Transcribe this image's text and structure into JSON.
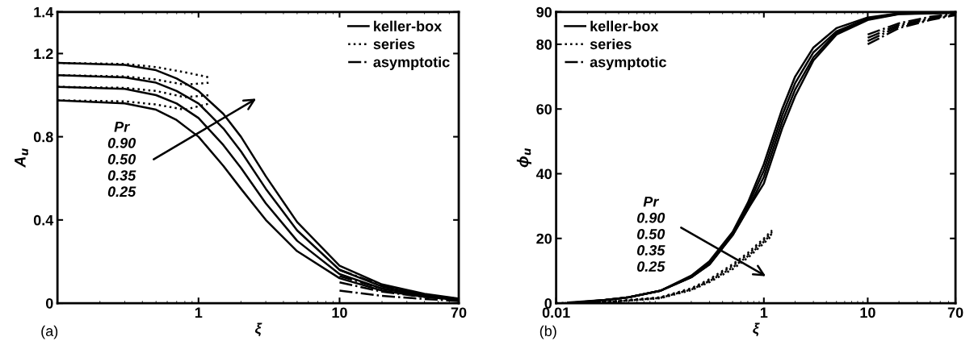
{
  "chart_data": [
    {
      "type": "line",
      "xlabel": "ξ",
      "ylabel": "A$_{u}$",
      "log": "x",
      "xlim": [
        0.1,
        70
      ],
      "xticks": [
        1,
        10,
        70
      ],
      "ylim": [
        0,
        1.4
      ],
      "yticks": [
        0,
        0.4,
        0.8,
        1.2,
        1.4
      ],
      "grid": false,
      "legend": "top right",
      "annotations": [
        "(a)",
        "Pr\n0.90\n0.50\n0.35\n0.25"
      ],
      "series": [
        {
          "name": "keller-box",
          "color": "#000000",
          "line_style": "solid",
          "x": [
            0.1,
            0.3,
            0.5,
            0.7,
            1,
            1.5,
            2,
            3,
            5,
            10,
            20,
            40,
            70
          ],
          "values": [
            0.975,
            0.96,
            0.93,
            0.88,
            0.8,
            0.66,
            0.55,
            0.4,
            0.25,
            0.12,
            0.06,
            0.03,
            0.015
          ]
        },
        {
          "color": "#000000",
          "line_style": "solid",
          "x": [
            0.1,
            0.3,
            0.5,
            0.7,
            1,
            1.5,
            2,
            3,
            5,
            10,
            20,
            40,
            70
          ],
          "values": [
            1.04,
            1.03,
            1.0,
            0.96,
            0.89,
            0.76,
            0.65,
            0.48,
            0.3,
            0.14,
            0.07,
            0.035,
            0.017
          ]
        },
        {
          "color": "#000000",
          "line_style": "solid",
          "x": [
            0.1,
            0.3,
            0.5,
            0.7,
            1,
            1.5,
            2,
            3,
            5,
            10,
            20,
            40,
            70
          ],
          "values": [
            1.096,
            1.085,
            1.06,
            1.02,
            0.96,
            0.84,
            0.73,
            0.55,
            0.35,
            0.16,
            0.08,
            0.04,
            0.02
          ]
        },
        {
          "color": "#000000",
          "line_style": "solid",
          "x": [
            0.1,
            0.3,
            0.5,
            0.7,
            1,
            1.5,
            2,
            3,
            5,
            10,
            20,
            40,
            70
          ],
          "values": [
            1.155,
            1.145,
            1.12,
            1.08,
            1.02,
            0.91,
            0.8,
            0.61,
            0.39,
            0.18,
            0.09,
            0.045,
            0.022
          ]
        },
        {
          "name": "series",
          "color": "#000000",
          "line_style": "dotted",
          "x": [
            0.1,
            0.3,
            0.5,
            0.8,
            1.2
          ],
          "values": [
            1.155,
            1.15,
            1.135,
            1.11,
            1.085
          ]
        },
        {
          "color": "#000000",
          "line_style": "dotted",
          "x": [
            0.1,
            0.3,
            0.5,
            0.8,
            1.2
          ],
          "values": [
            1.096,
            1.09,
            1.075,
            1.05,
            1.06
          ]
        },
        {
          "color": "#000000",
          "line_style": "dotted",
          "x": [
            0.1,
            0.3,
            0.5,
            0.8,
            1.2
          ],
          "values": [
            1.04,
            1.035,
            1.02,
            0.99,
            1.0
          ]
        },
        {
          "color": "#000000",
          "line_style": "dotted",
          "x": [
            0.1,
            0.3,
            0.5,
            0.8,
            1.2
          ],
          "values": [
            0.975,
            0.97,
            0.955,
            0.93,
            0.96
          ]
        },
        {
          "name": "asymptotic",
          "color": "#000000",
          "line_style": "dashdot",
          "x": [
            10,
            20,
            40,
            70
          ],
          "values": [
            0.16,
            0.085,
            0.04,
            0.02
          ]
        },
        {
          "color": "#000000",
          "line_style": "dashdot",
          "x": [
            10,
            20,
            40,
            70
          ],
          "values": [
            0.13,
            0.07,
            0.035,
            0.018
          ]
        },
        {
          "color": "#000000",
          "line_style": "dashdot",
          "x": [
            10,
            20,
            40,
            70
          ],
          "values": [
            0.1,
            0.055,
            0.03,
            0.015
          ]
        },
        {
          "color": "#000000",
          "line_style": "dashdot",
          "x": [
            10,
            20,
            40,
            70
          ],
          "values": [
            0.06,
            0.035,
            0.02,
            0.01
          ]
        }
      ]
    },
    {
      "type": "line",
      "xlabel": "ξ",
      "ylabel": "ϕ$_{u}$",
      "log": "x",
      "xlim": [
        0.01,
        70
      ],
      "xticks": [
        0.01,
        1,
        10,
        70
      ],
      "ylim": [
        0,
        90
      ],
      "yticks": [
        0,
        20,
        40,
        60,
        80,
        90
      ],
      "grid": false,
      "legend": "top left",
      "annotations": [
        "(b)",
        "Pr\n0.90\n0.50\n0.35\n0.25"
      ],
      "series": [
        {
          "name": "keller-box",
          "color": "#000000",
          "line_style": "solid",
          "x": [
            0.013,
            0.03,
            0.05,
            0.1,
            0.2,
            0.3,
            0.5,
            0.7,
            1,
            1.5,
            2,
            3,
            5,
            10,
            20,
            70
          ],
          "values": [
            0.2,
            1,
            1.8,
            3.8,
            8,
            12,
            21,
            29,
            37,
            54,
            64,
            75,
            83,
            87.5,
            89.3,
            89.7
          ]
        },
        {
          "color": "#000000",
          "line_style": "solid",
          "x": [
            0.015,
            0.03,
            0.05,
            0.1,
            0.2,
            0.3,
            0.5,
            0.7,
            1,
            1.5,
            2,
            3,
            5,
            10,
            20,
            70
          ],
          "values": [
            0.2,
            1,
            1.8,
            3.8,
            8,
            12,
            21,
            29,
            39,
            56,
            66,
            76,
            83.5,
            87.8,
            89.4,
            89.8
          ]
        },
        {
          "color": "#000000",
          "line_style": "solid",
          "x": [
            0.018,
            0.03,
            0.05,
            0.1,
            0.2,
            0.3,
            0.5,
            0.7,
            1,
            1.5,
            2,
            3,
            5,
            10,
            20,
            70
          ],
          "values": [
            0.3,
            1,
            1.8,
            3.8,
            8,
            12.5,
            21.5,
            30,
            41,
            58,
            68,
            77.5,
            84,
            88,
            89.5,
            89.9
          ]
        },
        {
          "color": "#000000",
          "line_style": "solid",
          "x": [
            0.022,
            0.03,
            0.05,
            0.1,
            0.2,
            0.3,
            0.5,
            0.7,
            1,
            1.5,
            2,
            3,
            5,
            10,
            20,
            70
          ],
          "values": [
            0.4,
            1,
            1.8,
            3.8,
            8.5,
            13,
            22,
            31,
            43,
            60,
            70,
            79,
            85,
            88.3,
            89.6,
            90
          ]
        },
        {
          "name": "series",
          "color": "#000000",
          "line_style": "dotted",
          "x": [
            0.01,
            0.03,
            0.1,
            0.2,
            0.3,
            0.5,
            0.7,
            1,
            1.2
          ],
          "values": [
            0,
            0.3,
            1.5,
            4,
            6.5,
            10.5,
            14,
            18.5,
            21
          ]
        },
        {
          "color": "#000000",
          "line_style": "dotted",
          "x": [
            0.012,
            0.03,
            0.1,
            0.2,
            0.3,
            0.5,
            0.7,
            1,
            1.2
          ],
          "values": [
            0,
            0.3,
            1.6,
            4.2,
            6.8,
            11,
            14.5,
            19,
            21.5
          ]
        },
        {
          "color": "#000000",
          "line_style": "dotted",
          "x": [
            0.014,
            0.03,
            0.1,
            0.2,
            0.3,
            0.5,
            0.7,
            1,
            1.2
          ],
          "values": [
            0,
            0.3,
            1.7,
            4.4,
            7.1,
            11.5,
            15,
            19.5,
            22
          ]
        },
        {
          "color": "#000000",
          "line_style": "dotted",
          "x": [
            0.016,
            0.03,
            0.1,
            0.2,
            0.3,
            0.5,
            0.7,
            1,
            1.2
          ],
          "values": [
            0,
            0.4,
            1.8,
            4.6,
            7.4,
            12,
            15.5,
            20,
            22.5
          ]
        },
        {
          "name": "asymptotic",
          "color": "#000000",
          "line_style": "dashdot",
          "x": [
            10,
            20,
            40,
            70
          ],
          "values": [
            83,
            86.5,
            88.5,
            89.5
          ]
        },
        {
          "color": "#000000",
          "line_style": "dashdot",
          "x": [
            10,
            20,
            40,
            70
          ],
          "values": [
            82,
            86,
            88,
            89.3
          ]
        },
        {
          "color": "#000000",
          "line_style": "dashdot",
          "x": [
            10,
            20,
            40,
            70
          ],
          "values": [
            81,
            85.5,
            87.8,
            89.2
          ]
        },
        {
          "color": "#000000",
          "line_style": "dashdot",
          "x": [
            10,
            20,
            40,
            70
          ],
          "values": [
            80,
            85,
            87.5,
            89
          ]
        }
      ]
    }
  ]
}
